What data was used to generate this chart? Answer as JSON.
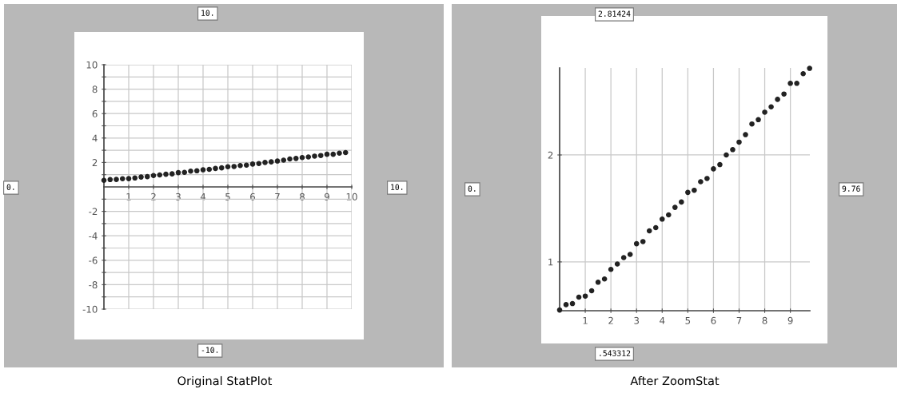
{
  "chart_data": [
    {
      "type": "scatter",
      "title": "Original StatPlot",
      "marker": "circle",
      "grid": true,
      "x": [
        0,
        0.25,
        0.5,
        0.75,
        1,
        1.25,
        1.5,
        1.75,
        2,
        2.25,
        2.5,
        2.75,
        3,
        3.25,
        3.5,
        3.75,
        4,
        4.25,
        4.5,
        4.75,
        5,
        5.25,
        5.5,
        5.75,
        6,
        6.25,
        6.5,
        6.75,
        7,
        7.25,
        7.5,
        7.75,
        8,
        8.25,
        8.5,
        8.75,
        9,
        9.25,
        9.5,
        9.75
      ],
      "series": [
        {
          "color": "#222222",
          "values": [
            0.54,
            0.6,
            0.61,
            0.67,
            0.68,
            0.73,
            0.81,
            0.84,
            0.93,
            0.98,
            1.04,
            1.07,
            1.17,
            1.19,
            1.29,
            1.32,
            1.4,
            1.44,
            1.51,
            1.56,
            1.65,
            1.67,
            1.75,
            1.78,
            1.87,
            1.91,
            2.0,
            2.05,
            2.12,
            2.19,
            2.29,
            2.33,
            2.4,
            2.45,
            2.52,
            2.57,
            2.67,
            2.67,
            2.76,
            2.81
          ]
        }
      ],
      "xlim": [
        0,
        10
      ],
      "ylim": [
        -10,
        10
      ],
      "xticks": [
        1,
        2,
        3,
        4,
        5,
        6,
        7,
        8,
        9,
        10
      ],
      "yticks": [
        {
          "value": -10,
          "label": "-10"
        },
        {
          "value": -9,
          "label": null
        },
        {
          "value": -8,
          "label": "-8"
        },
        {
          "value": -7,
          "label": null
        },
        {
          "value": -6,
          "label": "-6"
        },
        {
          "value": -5,
          "label": null
        },
        {
          "value": -4,
          "label": "-4"
        },
        {
          "value": -3,
          "label": null
        },
        {
          "value": -2,
          "label": "-2"
        },
        {
          "value": -1,
          "label": null
        },
        {
          "value": 1,
          "label": null
        },
        2,
        {
          "value": 3,
          "label": null
        },
        4,
        {
          "value": 5,
          "label": null
        },
        6,
        {
          "value": 7,
          "label": null
        },
        8,
        {
          "value": 9,
          "label": null
        },
        10
      ],
      "annotations": [
        "10.",
        "0.",
        "10.",
        "-10."
      ]
    },
    {
      "type": "scatter",
      "title": "After ZoomStat",
      "marker": "circle",
      "grid": true,
      "x": [
        0,
        0.25,
        0.5,
        0.75,
        1,
        1.25,
        1.5,
        1.75,
        2,
        2.25,
        2.5,
        2.75,
        3,
        3.25,
        3.5,
        3.75,
        4,
        4.25,
        4.5,
        4.75,
        5,
        5.25,
        5.5,
        5.75,
        6,
        6.25,
        6.5,
        6.75,
        7,
        7.25,
        7.5,
        7.75,
        8,
        8.25,
        8.5,
        8.75,
        9,
        9.25,
        9.5,
        9.75
      ],
      "series": [
        {
          "color": "#222222",
          "values": [
            0.55,
            0.6,
            0.61,
            0.67,
            0.68,
            0.73,
            0.81,
            0.84,
            0.93,
            0.98,
            1.04,
            1.07,
            1.17,
            1.19,
            1.29,
            1.32,
            1.4,
            1.44,
            1.51,
            1.56,
            1.65,
            1.67,
            1.75,
            1.78,
            1.87,
            1.91,
            2.0,
            2.05,
            2.12,
            2.19,
            2.29,
            2.33,
            2.4,
            2.45,
            2.52,
            2.57,
            2.67,
            2.67,
            2.76,
            2.81
          ]
        }
      ],
      "xlim": [
        0,
        9.76
      ],
      "ylim": [
        0.543312,
        2.81424
      ],
      "xticks": [
        1,
        2,
        3,
        4,
        5,
        6,
        7,
        8,
        9
      ],
      "yticks": [
        1,
        2
      ],
      "annotations": [
        "2.81424",
        "0.",
        "9.76",
        ".543312"
      ]
    }
  ]
}
